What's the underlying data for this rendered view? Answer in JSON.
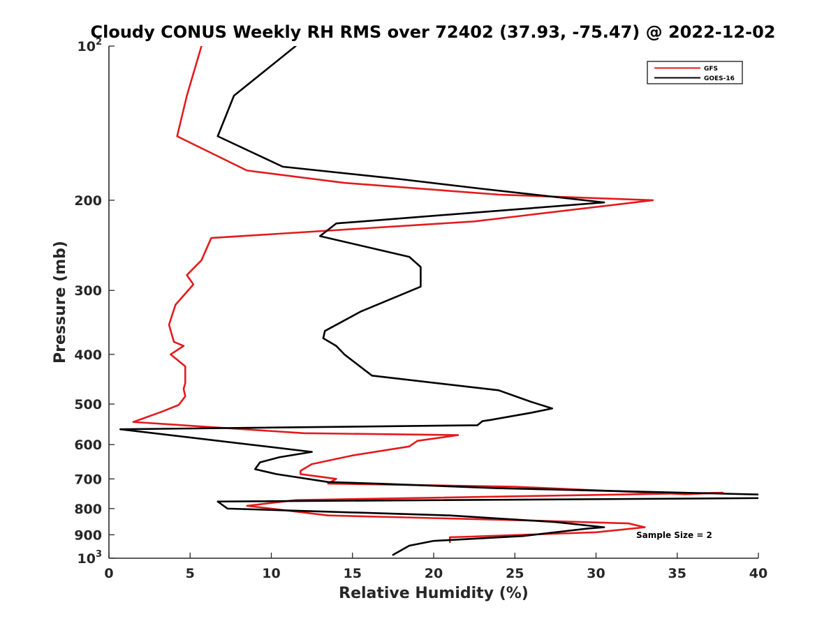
{
  "colors": {
    "background": "#ffffff",
    "axis": "#262626",
    "title": "#000000",
    "gfs": "#e31a1c",
    "goes16": "#000000"
  },
  "chart_data": {
    "type": "line",
    "title": "Cloudy CONUS Weekly RH RMS over 72402 (37.93, -75.47) @ 2022-12-02",
    "xlabel": "Relative Humidity (%)",
    "ylabel": "Pressure (mb)",
    "xlim": [
      0,
      40
    ],
    "ylim": [
      100,
      1000
    ],
    "y_scale": "log",
    "y_reversed": true,
    "grid": false,
    "legend_position": "top-right",
    "x_ticks": [
      {
        "value": 0,
        "label": "0"
      },
      {
        "value": 5,
        "label": "5"
      },
      {
        "value": 10,
        "label": "10"
      },
      {
        "value": 15,
        "label": "15"
      },
      {
        "value": 20,
        "label": "20"
      },
      {
        "value": 25,
        "label": "25"
      },
      {
        "value": 30,
        "label": "30"
      },
      {
        "value": 35,
        "label": "35"
      },
      {
        "value": 40,
        "label": "40"
      }
    ],
    "y_ticks": [
      {
        "value": 100,
        "label": "10",
        "sup": "2"
      },
      {
        "value": 200,
        "label": "200"
      },
      {
        "value": 300,
        "label": "300"
      },
      {
        "value": 400,
        "label": "400"
      },
      {
        "value": 500,
        "label": "500"
      },
      {
        "value": 600,
        "label": "600"
      },
      {
        "value": 700,
        "label": "700"
      },
      {
        "value": 800,
        "label": "800"
      },
      {
        "value": 900,
        "label": "900"
      },
      {
        "value": 1000,
        "label": "10",
        "sup": "3"
      }
    ],
    "annotation": "Sample Size = 2",
    "series": [
      {
        "name": "GFS",
        "color": "#e31a1c",
        "points": [
          [
            5.7,
            100
          ],
          [
            4.8,
            125
          ],
          [
            4.2,
            150
          ],
          [
            8.5,
            175
          ],
          [
            14.5,
            185
          ],
          [
            24,
            195
          ],
          [
            33.5,
            200
          ],
          [
            22.5,
            220
          ],
          [
            6.3,
            237
          ],
          [
            5.7,
            262
          ],
          [
            4.8,
            280
          ],
          [
            5.2,
            292
          ],
          [
            4.1,
            320
          ],
          [
            3.7,
            350
          ],
          [
            4.0,
            378
          ],
          [
            4.6,
            385
          ],
          [
            3.8,
            400
          ],
          [
            4.7,
            422
          ],
          [
            4.7,
            455
          ],
          [
            4.6,
            467
          ],
          [
            4.7,
            483
          ],
          [
            4.3,
            502
          ],
          [
            3.3,
            517
          ],
          [
            1.5,
            542
          ],
          [
            12,
            570
          ],
          [
            21.5,
            575
          ],
          [
            19,
            590
          ],
          [
            18.5,
            605
          ],
          [
            15,
            630
          ],
          [
            12.5,
            655
          ],
          [
            11.8,
            675
          ],
          [
            11.8,
            685
          ],
          [
            14,
            700
          ],
          [
            13.5,
            715
          ],
          [
            25,
            725
          ],
          [
            35.5,
            750
          ],
          [
            37.8,
            745
          ],
          [
            11.5,
            770
          ],
          [
            8.5,
            790
          ],
          [
            13.5,
            825
          ],
          [
            26.5,
            845
          ],
          [
            32,
            855
          ],
          [
            33,
            870
          ],
          [
            30,
            890
          ],
          [
            22,
            908
          ],
          [
            21,
            910
          ],
          [
            21,
            930
          ]
        ]
      },
      {
        "name": "GOES-16",
        "color": "#000000",
        "points": [
          [
            11.5,
            100
          ],
          [
            7.7,
            125
          ],
          [
            6.7,
            150
          ],
          [
            10.7,
            172
          ],
          [
            18,
            182
          ],
          [
            23,
            190
          ],
          [
            30.5,
            202
          ],
          [
            14,
            222
          ],
          [
            13,
            235
          ],
          [
            18.5,
            258
          ],
          [
            19.2,
            270
          ],
          [
            19.2,
            295
          ],
          [
            15.5,
            330
          ],
          [
            13.3,
            360
          ],
          [
            13.2,
            372
          ],
          [
            14,
            385
          ],
          [
            14.5,
            400
          ],
          [
            16.2,
            440
          ],
          [
            24,
            470
          ],
          [
            26,
            495
          ],
          [
            27.3,
            510
          ],
          [
            26,
            520
          ],
          [
            23.5,
            537
          ],
          [
            23,
            540
          ],
          [
            22.7,
            550
          ],
          [
            0.7,
            560
          ],
          [
            12.5,
            620
          ],
          [
            10.5,
            635
          ],
          [
            9.3,
            650
          ],
          [
            9,
            670
          ],
          [
            10.3,
            685
          ],
          [
            13.5,
            710
          ],
          [
            16.5,
            715
          ],
          [
            24,
            730
          ],
          [
            40.8,
            752
          ],
          [
            40.8,
            763
          ],
          [
            6.7,
            775
          ],
          [
            7.3,
            800
          ],
          [
            21,
            825
          ],
          [
            27.5,
            850
          ],
          [
            30.5,
            870
          ],
          [
            29.5,
            875
          ],
          [
            25.5,
            905
          ],
          [
            20,
            925
          ],
          [
            18.5,
            945
          ],
          [
            17.5,
            985
          ]
        ]
      }
    ]
  }
}
